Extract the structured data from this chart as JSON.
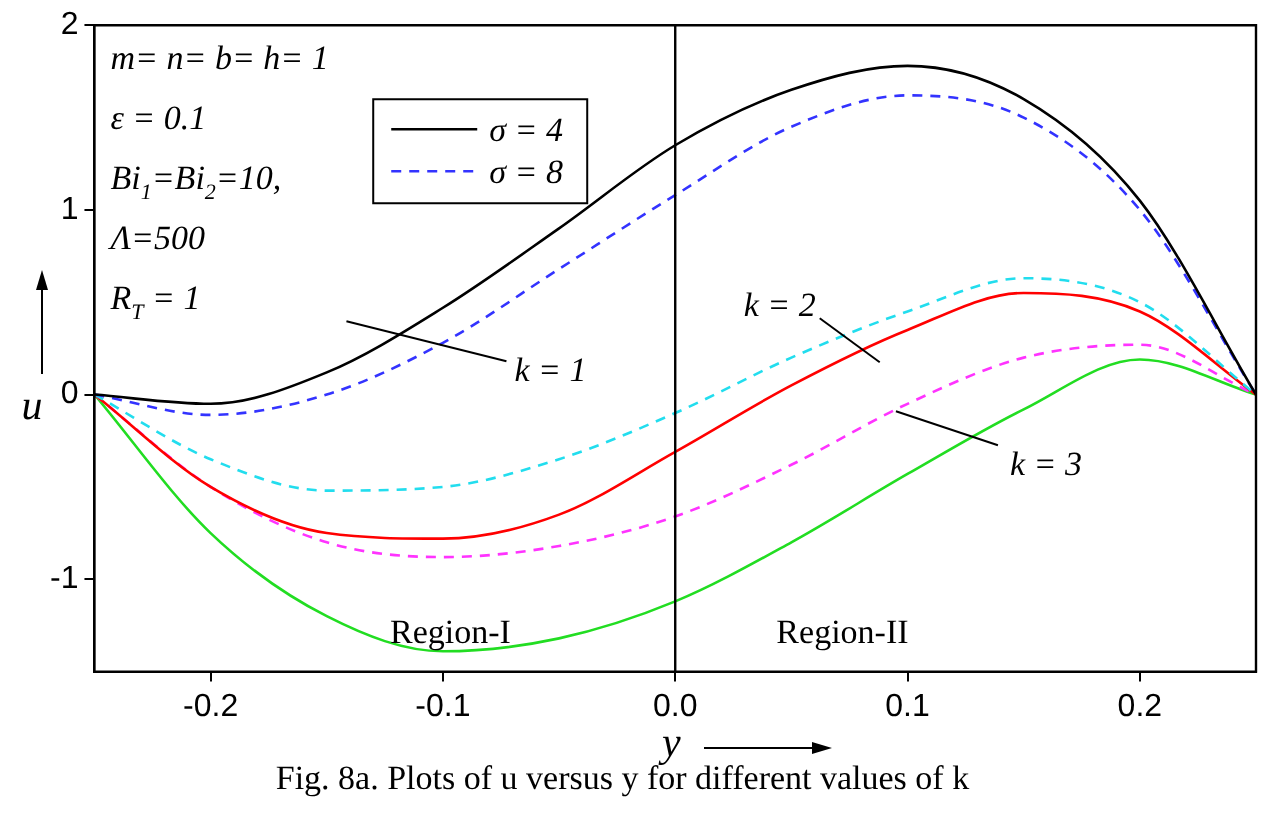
{
  "chart_data": {
    "type": "line",
    "xlabel": "y",
    "ylabel": "u",
    "x": [
      -0.25,
      -0.2,
      -0.15,
      -0.1,
      -0.05,
      0,
      0.05,
      0.1,
      0.15,
      0.2,
      0.25
    ],
    "series": [
      {
        "name": "σ = 4",
        "color": "#000000",
        "line_style": "solid",
        "values": [
          0,
          -0.05,
          0.12,
          0.47,
          0.9,
          1.35,
          1.65,
          1.78,
          1.6,
          1.05,
          0
        ]
      },
      {
        "name": "σ = 8",
        "color": "#3333ff",
        "line_style": "dashed",
        "values": [
          0,
          -0.11,
          0.0,
          0.28,
          0.68,
          1.08,
          1.45,
          1.62,
          1.5,
          1.0,
          0
        ]
      },
      {
        "color": "#22ddee",
        "line_style": "dashed",
        "values": [
          0,
          -0.35,
          -0.52,
          -0.5,
          -0.35,
          -0.1,
          0.2,
          0.45,
          0.63,
          0.5,
          0
        ]
      },
      {
        "color": "#ff0000",
        "line_style": "solid",
        "values": [
          0,
          -0.5,
          -0.75,
          -0.78,
          -0.65,
          -0.31,
          0.05,
          0.35,
          0.55,
          0.45,
          0
        ]
      },
      {
        "color": "#ff33ff",
        "line_style": "dashed",
        "values": [
          0,
          -0.5,
          -0.8,
          -0.88,
          -0.82,
          -0.66,
          -0.38,
          -0.05,
          0.2,
          0.27,
          0
        ]
      },
      {
        "color": "#22dd22",
        "line_style": "solid",
        "values": [
          0,
          -0.75,
          -1.2,
          -1.39,
          -1.32,
          -1.12,
          -0.8,
          -0.43,
          -0.08,
          0.19,
          0
        ]
      }
    ],
    "xlim": [
      -0.25,
      0.25
    ],
    "xticks": [
      -0.2,
      -0.1,
      {
        "value": 0,
        "label": "0.0"
      },
      0.1,
      0.2
    ],
    "ylim": [
      -1.5,
      2
    ],
    "yticks": [
      -1,
      0,
      1,
      2
    ],
    "grid": false,
    "legend": "top left",
    "marker": "none",
    "ref_lines": [
      {
        "axis": "x",
        "value": 0,
        "color": "#000000"
      }
    ],
    "annotations": [
      "m= n= b= h= 1",
      "ε = 0.1",
      "Bi$_{1}$=Bi$_{2}$=10,",
      "Λ=500",
      "R$_{T}$ = 1",
      "k = 1",
      {
        "text": "k = 2",
        "x": 0.082,
        "y": 0.24
      },
      {
        "text": "k = 3",
        "x": 0.095,
        "y": -0.09
      },
      "Region-I",
      "Region-II",
      "Fig. 8a. Plots of u versus y for different values of k"
    ]
  }
}
